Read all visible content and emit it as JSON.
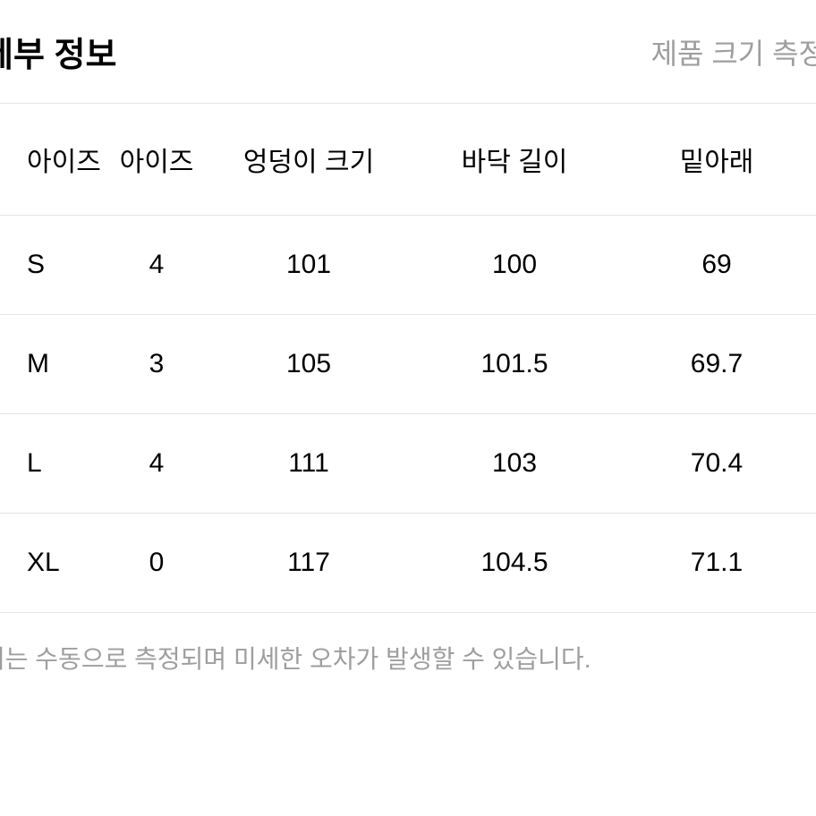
{
  "header": {
    "title": "세부 정보",
    "help_link": "제품 크기 측정 "
  },
  "table": {
    "columns": [
      "아이즈",
      "아이즈",
      "엉덩이 크기",
      "바닥 길이",
      "밑아래 "
    ],
    "rows": [
      [
        "S",
        "4",
        "101",
        "100",
        "69"
      ],
      [
        "M",
        "3",
        "105",
        "101.5",
        "69.7"
      ],
      [
        "L",
        "4",
        "111",
        "103",
        "70.4"
      ],
      [
        "XL",
        "0",
        "117",
        "104.5",
        "71.1"
      ]
    ]
  },
  "footer": {
    "note": "터는 수동으로 측정되며 미세한 오차가 발생할 수 있습니다."
  }
}
